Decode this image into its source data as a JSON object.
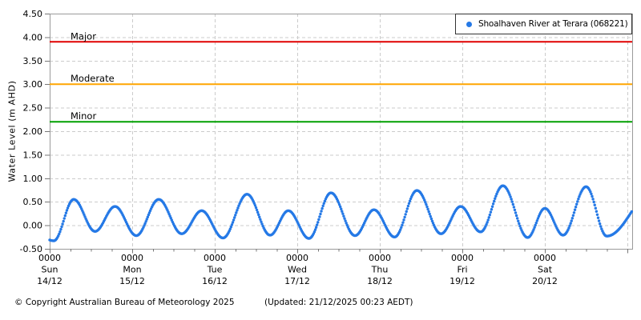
{
  "chart_data": {
    "type": "scatter",
    "title": "",
    "ylabel": "Water Level (m AHD)",
    "ylim": [
      -0.5,
      4.5
    ],
    "x_range_days": 7.06,
    "grid": true,
    "y_tick_values": [
      -0.5,
      0,
      0.5,
      1,
      1.5,
      2,
      2.5,
      3,
      3.5,
      4,
      4.5
    ],
    "y_tick_labels": [
      "-0.50",
      "0.00",
      "0.50",
      "1.00",
      "1.50",
      "2.00",
      "2.50",
      "3.00",
      "3.50",
      "4.00",
      "4.50"
    ],
    "x_days": [
      {
        "time": "0000",
        "day": "Sun",
        "date": "14/12"
      },
      {
        "time": "0000",
        "day": "Mon",
        "date": "15/12"
      },
      {
        "time": "0000",
        "day": "Tue",
        "date": "16/12"
      },
      {
        "time": "0000",
        "day": "Wed",
        "date": "17/12"
      },
      {
        "time": "0000",
        "day": "Thu",
        "date": "18/12"
      },
      {
        "time": "0000",
        "day": "Fri",
        "date": "19/12"
      },
      {
        "time": "0000",
        "day": "Sat",
        "date": "20/12"
      }
    ],
    "legend": {
      "position": "top-right",
      "label": "Shoalhaven River at Terara (068221)",
      "marker_color": "#2579e6"
    },
    "thresholds": [
      {
        "name": "Minor",
        "value": 2.2,
        "color": "#00a000"
      },
      {
        "name": "Moderate",
        "value": 3.0,
        "color": "#ffa500"
      },
      {
        "name": "Major",
        "value": 3.9,
        "color": "#e00000"
      }
    ],
    "series": [
      {
        "name": "Shoalhaven River at Terara (068221)",
        "color": "#2579e6",
        "marker": "dot",
        "sample_interval_hours": 0.25,
        "tide_extremes_hours_level_m": [
          [
            -10.8,
            0.4
          ],
          [
            1.2,
            -0.33
          ],
          [
            7.0,
            0.55
          ],
          [
            13.2,
            -0.13
          ],
          [
            19.0,
            0.4
          ],
          [
            25.2,
            -0.22
          ],
          [
            31.7,
            0.55
          ],
          [
            38.4,
            -0.18
          ],
          [
            44.2,
            0.31
          ],
          [
            50.4,
            -0.27
          ],
          [
            57.4,
            0.66
          ],
          [
            64.1,
            -0.21
          ],
          [
            69.4,
            0.31
          ],
          [
            75.4,
            -0.28
          ],
          [
            81.8,
            0.69
          ],
          [
            88.8,
            -0.22
          ],
          [
            94.3,
            0.33
          ],
          [
            100.3,
            -0.25
          ],
          [
            106.8,
            0.74
          ],
          [
            113.8,
            -0.18
          ],
          [
            119.5,
            0.4
          ],
          [
            125.3,
            -0.14
          ],
          [
            131.8,
            0.84
          ],
          [
            139.0,
            -0.26
          ],
          [
            144.0,
            0.36
          ],
          [
            149.3,
            -0.21
          ],
          [
            156.0,
            0.82
          ],
          [
            162.0,
            -0.23
          ],
          [
            176.4,
            0.8
          ]
        ]
      }
    ]
  },
  "footer": {
    "copyright": "© Copyright Australian Bureau of Meteorology 2025",
    "updated": "(Updated: 21/12/2025 00:23 AEDT)"
  }
}
